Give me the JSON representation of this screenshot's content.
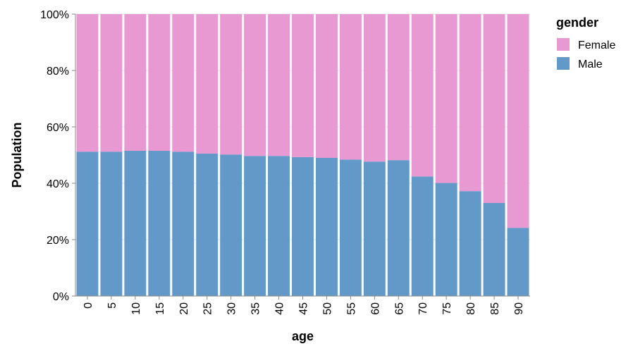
{
  "chart_data": {
    "type": "bar",
    "stacked": "normalize",
    "title": "",
    "xlabel": "age",
    "ylabel": "Population",
    "x_tick_labels": [
      "0",
      "5",
      "10",
      "15",
      "20",
      "25",
      "30",
      "35",
      "40",
      "45",
      "50",
      "55",
      "60",
      "65",
      "70",
      "75",
      "80",
      "85",
      "90"
    ],
    "y_tick_labels": [
      "0%",
      "20%",
      "40%",
      "60%",
      "80%",
      "100%"
    ],
    "ylim": [
      0,
      1
    ],
    "grid": true,
    "legend": {
      "title": "gender",
      "placement": "right"
    },
    "series": [
      {
        "name": "Male",
        "color": "#6399c9",
        "values": [
          0.512,
          0.512,
          0.515,
          0.515,
          0.512,
          0.505,
          0.502,
          0.497,
          0.497,
          0.493,
          0.49,
          0.484,
          0.477,
          0.482,
          0.424,
          0.401,
          0.372,
          0.33,
          0.242
        ]
      },
      {
        "name": "Female",
        "color": "#e899d1",
        "values": [
          0.488,
          0.488,
          0.485,
          0.485,
          0.488,
          0.495,
          0.498,
          0.503,
          0.503,
          0.507,
          0.51,
          0.516,
          0.523,
          0.518,
          0.576,
          0.599,
          0.628,
          0.67,
          0.758
        ]
      }
    ]
  }
}
